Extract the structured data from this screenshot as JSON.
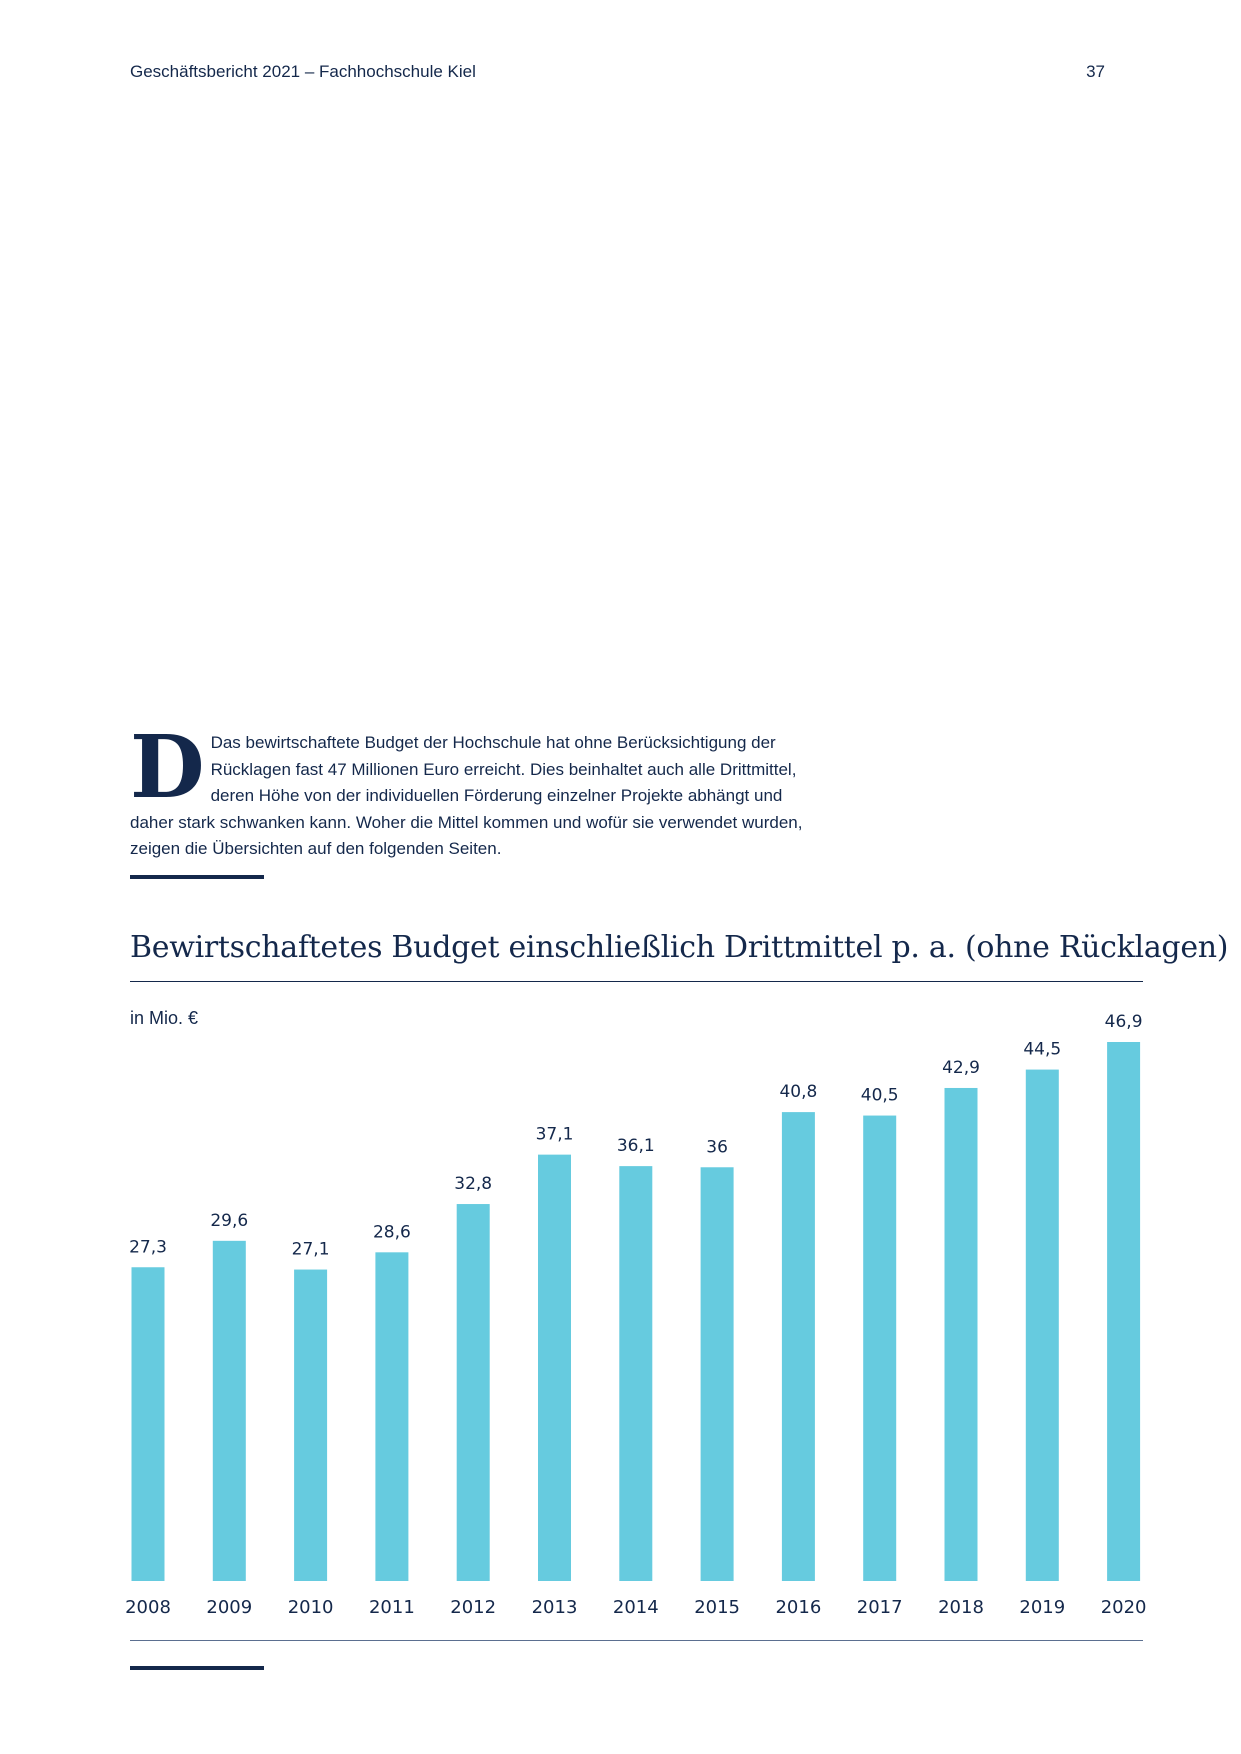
{
  "header": {
    "title": "Geschäftsbericht 2021 – Fachhochschule Kiel",
    "page_number": "37"
  },
  "intro": {
    "dropcap": "D",
    "text": "Das bewirtschaftete Budget der Hochschule hat ohne Berücksichtigung der Rücklagen fast 47 Millionen Euro erreicht. Dies beinhaltet auch alle Drittmittel, deren Höhe von der individuellen Förderung einzelner Projekte abhängt und daher stark schwanken kann. Woher die Mittel kommen und wofür sie verwendet wurden, zeigen die Übersichten auf den folgenden Seiten."
  },
  "chart_data": {
    "type": "bar",
    "title": "Bewirtschaftetes Budget einschließlich Drittmittel p. a. (ohne Rücklagen)",
    "unit_label": "in Mio. €",
    "categories": [
      "2008",
      "2009",
      "2010",
      "2011",
      "2012",
      "2013",
      "2014",
      "2015",
      "2016",
      "2017",
      "2018",
      "2019",
      "2020"
    ],
    "values": [
      27.3,
      29.6,
      27.1,
      28.6,
      32.8,
      37.1,
      36.1,
      36,
      40.8,
      40.5,
      42.9,
      44.5,
      46.9
    ],
    "value_labels": [
      "27,3",
      "29,6",
      "27,1",
      "28,6",
      "32,8",
      "37,1",
      "36,1",
      "36",
      "40,8",
      "40,5",
      "42,9",
      "44,5",
      "46,9"
    ],
    "ylim": [
      0,
      46.9
    ],
    "bar_color": "#66cbdf",
    "text_color": "#14284b",
    "grid": false
  }
}
